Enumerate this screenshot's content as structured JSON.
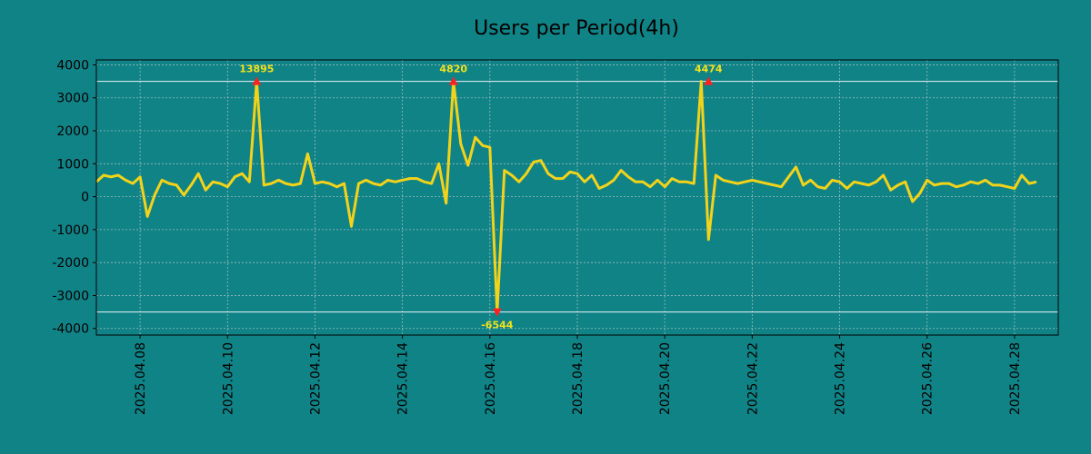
{
  "chart_data": {
    "type": "line",
    "title": "Users per Period(4h)",
    "xlabel": "",
    "ylabel": "",
    "ylim": [
      -4200,
      4150
    ],
    "xlim": [
      0,
      132
    ],
    "grid": true,
    "line_color": "#f2d31a",
    "marker_color": "#ff2020",
    "annotation_color": "#f2e21a",
    "threshold_color": "#e8f4f4",
    "thresholds": [
      3500,
      -3500
    ],
    "y_ticks": [
      {
        "value": 4000,
        "label": "4000"
      },
      {
        "value": 3000,
        "label": "3000"
      },
      {
        "value": 2000,
        "label": "2000"
      },
      {
        "value": 1000,
        "label": "1000"
      },
      {
        "value": 0,
        "label": "0"
      },
      {
        "value": -1000,
        "label": "-1000"
      },
      {
        "value": -2000,
        "label": "-2000"
      },
      {
        "value": -3000,
        "label": "-3000"
      },
      {
        "value": -4000,
        "label": "-4000"
      }
    ],
    "x_ticks": [
      {
        "index": 6,
        "label": "2025.04.08"
      },
      {
        "index": 18,
        "label": "2025.04.10"
      },
      {
        "index": 30,
        "label": "2025.04.12"
      },
      {
        "index": 42,
        "label": "2025.04.14"
      },
      {
        "index": 54,
        "label": "2025.04.16"
      },
      {
        "index": 66,
        "label": "2025.04.18"
      },
      {
        "index": 78,
        "label": "2025.04.20"
      },
      {
        "index": 90,
        "label": "2025.04.22"
      },
      {
        "index": 102,
        "label": "2025.04.24"
      },
      {
        "index": 114,
        "label": "2025.04.26"
      },
      {
        "index": 126,
        "label": "2025.04.28"
      }
    ],
    "values": [
      450,
      650,
      600,
      650,
      500,
      400,
      600,
      -600,
      50,
      500,
      400,
      350,
      50,
      350,
      700,
      200,
      450,
      400,
      300,
      600,
      700,
      450,
      3500,
      350,
      400,
      500,
      400,
      350,
      400,
      1300,
      400,
      450,
      400,
      300,
      400,
      -900,
      400,
      500,
      400,
      350,
      500,
      450,
      500,
      550,
      550,
      450,
      400,
      1000,
      -200,
      3500,
      1600,
      950,
      1800,
      1550,
      1500,
      -3500,
      800,
      650,
      450,
      700,
      1050,
      1100,
      700,
      550,
      550,
      750,
      700,
      450,
      650,
      250,
      350,
      500,
      800,
      600,
      450,
      450,
      300,
      500,
      300,
      550,
      450,
      450,
      400,
      3500,
      -1300,
      650,
      500,
      450,
      400,
      450,
      500,
      450,
      400,
      350,
      300,
      600,
      900,
      350,
      500,
      300,
      250,
      500,
      450,
      250,
      450,
      400,
      350,
      450,
      650,
      200,
      350,
      450,
      -150,
      100,
      500,
      350,
      400,
      400,
      300,
      350,
      450,
      400,
      500,
      350,
      350,
      300,
      250,
      650,
      400,
      450
    ],
    "markers": [
      {
        "index": 22,
        "value": 3500,
        "direction": "up",
        "label": "13895"
      },
      {
        "index": 49,
        "value": 3500,
        "direction": "up",
        "label": "4820"
      },
      {
        "index": 55,
        "value": -3500,
        "direction": "down",
        "label": "-6544"
      },
      {
        "index": 84,
        "value": 3500,
        "direction": "up",
        "label": "4474"
      }
    ]
  }
}
